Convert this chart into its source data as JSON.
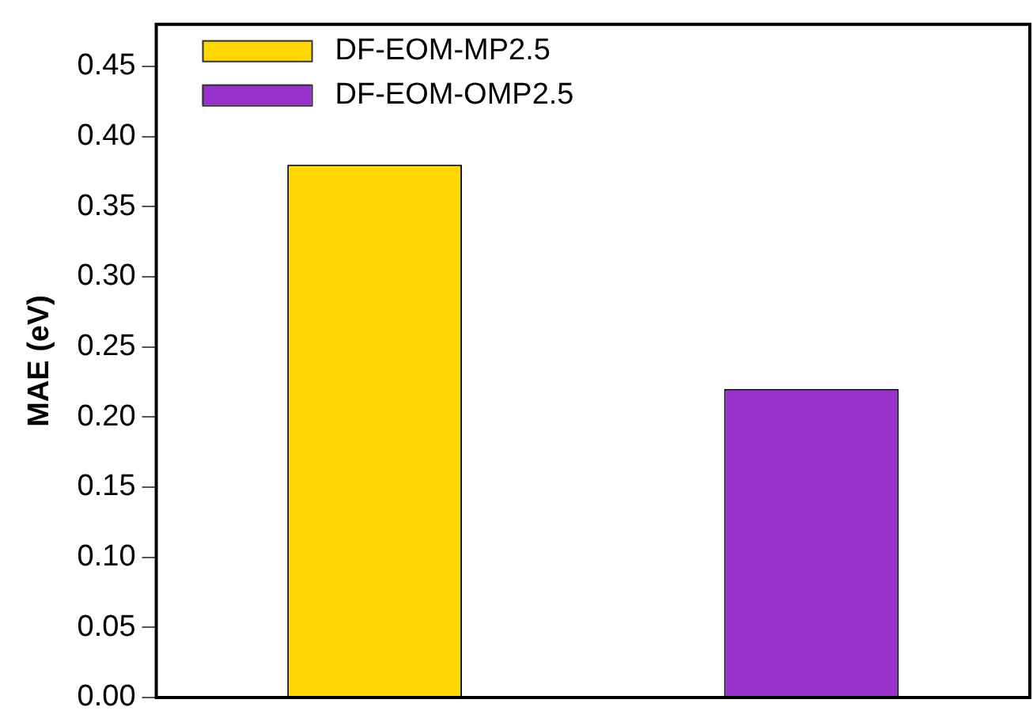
{
  "chart_data": {
    "type": "bar",
    "ylabel": "MAE (eV)",
    "categories": [
      null,
      null
    ],
    "stacked": true,
    "series": [
      {
        "name": "DF-EOM-MP2.5",
        "color": "#ffd700",
        "values": [
          0.38,
          null
        ]
      },
      {
        "name": "DF-EOM-OMP2.5",
        "color": "#9932cc",
        "values": [
          null,
          0.22
        ]
      }
    ],
    "ylim": [
      0,
      0.48
    ],
    "yticks": [
      {
        "value": 0,
        "label": "0.00"
      },
      {
        "value": 0.05,
        "label": "0.05"
      },
      {
        "value": 0.1,
        "label": "0.10"
      },
      {
        "value": 0.15,
        "label": "0.15"
      },
      {
        "value": 0.2,
        "label": "0.20"
      },
      {
        "value": 0.25,
        "label": "0.25"
      },
      {
        "value": 0.3,
        "label": "0.30"
      },
      {
        "value": 0.35,
        "label": "0.35"
      },
      {
        "value": 0.4,
        "label": "0.40"
      },
      {
        "value": 0.45,
        "label": "0.45"
      }
    ],
    "tick_labels": "y",
    "grid": false,
    "legend": "top left"
  }
}
